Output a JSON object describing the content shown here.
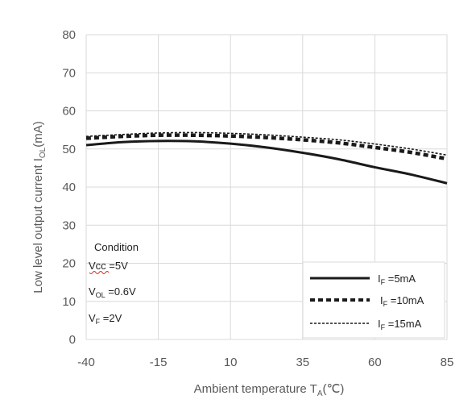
{
  "chart_data": {
    "type": "line",
    "title": "",
    "xlabel": "Ambient temperature T",
    "xlabel_sub": "A",
    "xlabel_unit": "(℃)",
    "ylabel": "Low level output current I",
    "ylabel_sub": "OL",
    "ylabel_unit": "(mA)",
    "xlim": [
      -40,
      85
    ],
    "ylim": [
      0,
      80
    ],
    "x_ticks": [
      "-40",
      "-15",
      "10",
      "35",
      "60",
      "85"
    ],
    "y_ticks": [
      "0",
      "10",
      "20",
      "30",
      "40",
      "50",
      "60",
      "70",
      "80"
    ],
    "x_tick_values": [
      -40,
      -15,
      10,
      35,
      60,
      85
    ],
    "y_tick_values": [
      0,
      10,
      20,
      30,
      40,
      50,
      60,
      70,
      80
    ],
    "grid": true,
    "legend_position": "bottom-right",
    "x": [
      -40,
      -27.5,
      -15,
      -2.5,
      10,
      22.5,
      35,
      47.5,
      60,
      72.5,
      85
    ],
    "series": [
      {
        "name": "IF =5mA",
        "style": "solid",
        "color": "#1a1a1a",
        "values": [
          51.0,
          51.8,
          52.1,
          52.0,
          51.4,
          50.4,
          49.0,
          47.3,
          45.2,
          43.3,
          41.0
        ]
      },
      {
        "name": "IF =10mA",
        "style": "dashed",
        "color": "#1a1a1a",
        "values": [
          52.8,
          53.3,
          53.6,
          53.6,
          53.4,
          53.0,
          52.4,
          51.6,
          50.4,
          49.1,
          47.4
        ]
      },
      {
        "name": "IF =15mA",
        "style": "dotted",
        "color": "#1a1a1a",
        "values": [
          53.3,
          53.8,
          54.2,
          54.3,
          54.1,
          53.7,
          53.1,
          52.4,
          51.3,
          50.0,
          48.4
        ]
      }
    ],
    "legend_labels": [
      {
        "main": "I",
        "sub": "F",
        "rest": " =5mA"
      },
      {
        "main": "I",
        "sub": "F",
        "rest": " =10mA"
      },
      {
        "main": "I",
        "sub": "F",
        "rest": " =15mA"
      }
    ],
    "condition_box": {
      "heading": "Condition",
      "lines": [
        {
          "main": "Vcc",
          "sub": "",
          "rest": " =5V"
        },
        {
          "main": "V",
          "sub": "OL",
          "rest": " =0.6V"
        },
        {
          "main": "V",
          "sub": "F",
          "rest": " =2V"
        }
      ]
    }
  }
}
